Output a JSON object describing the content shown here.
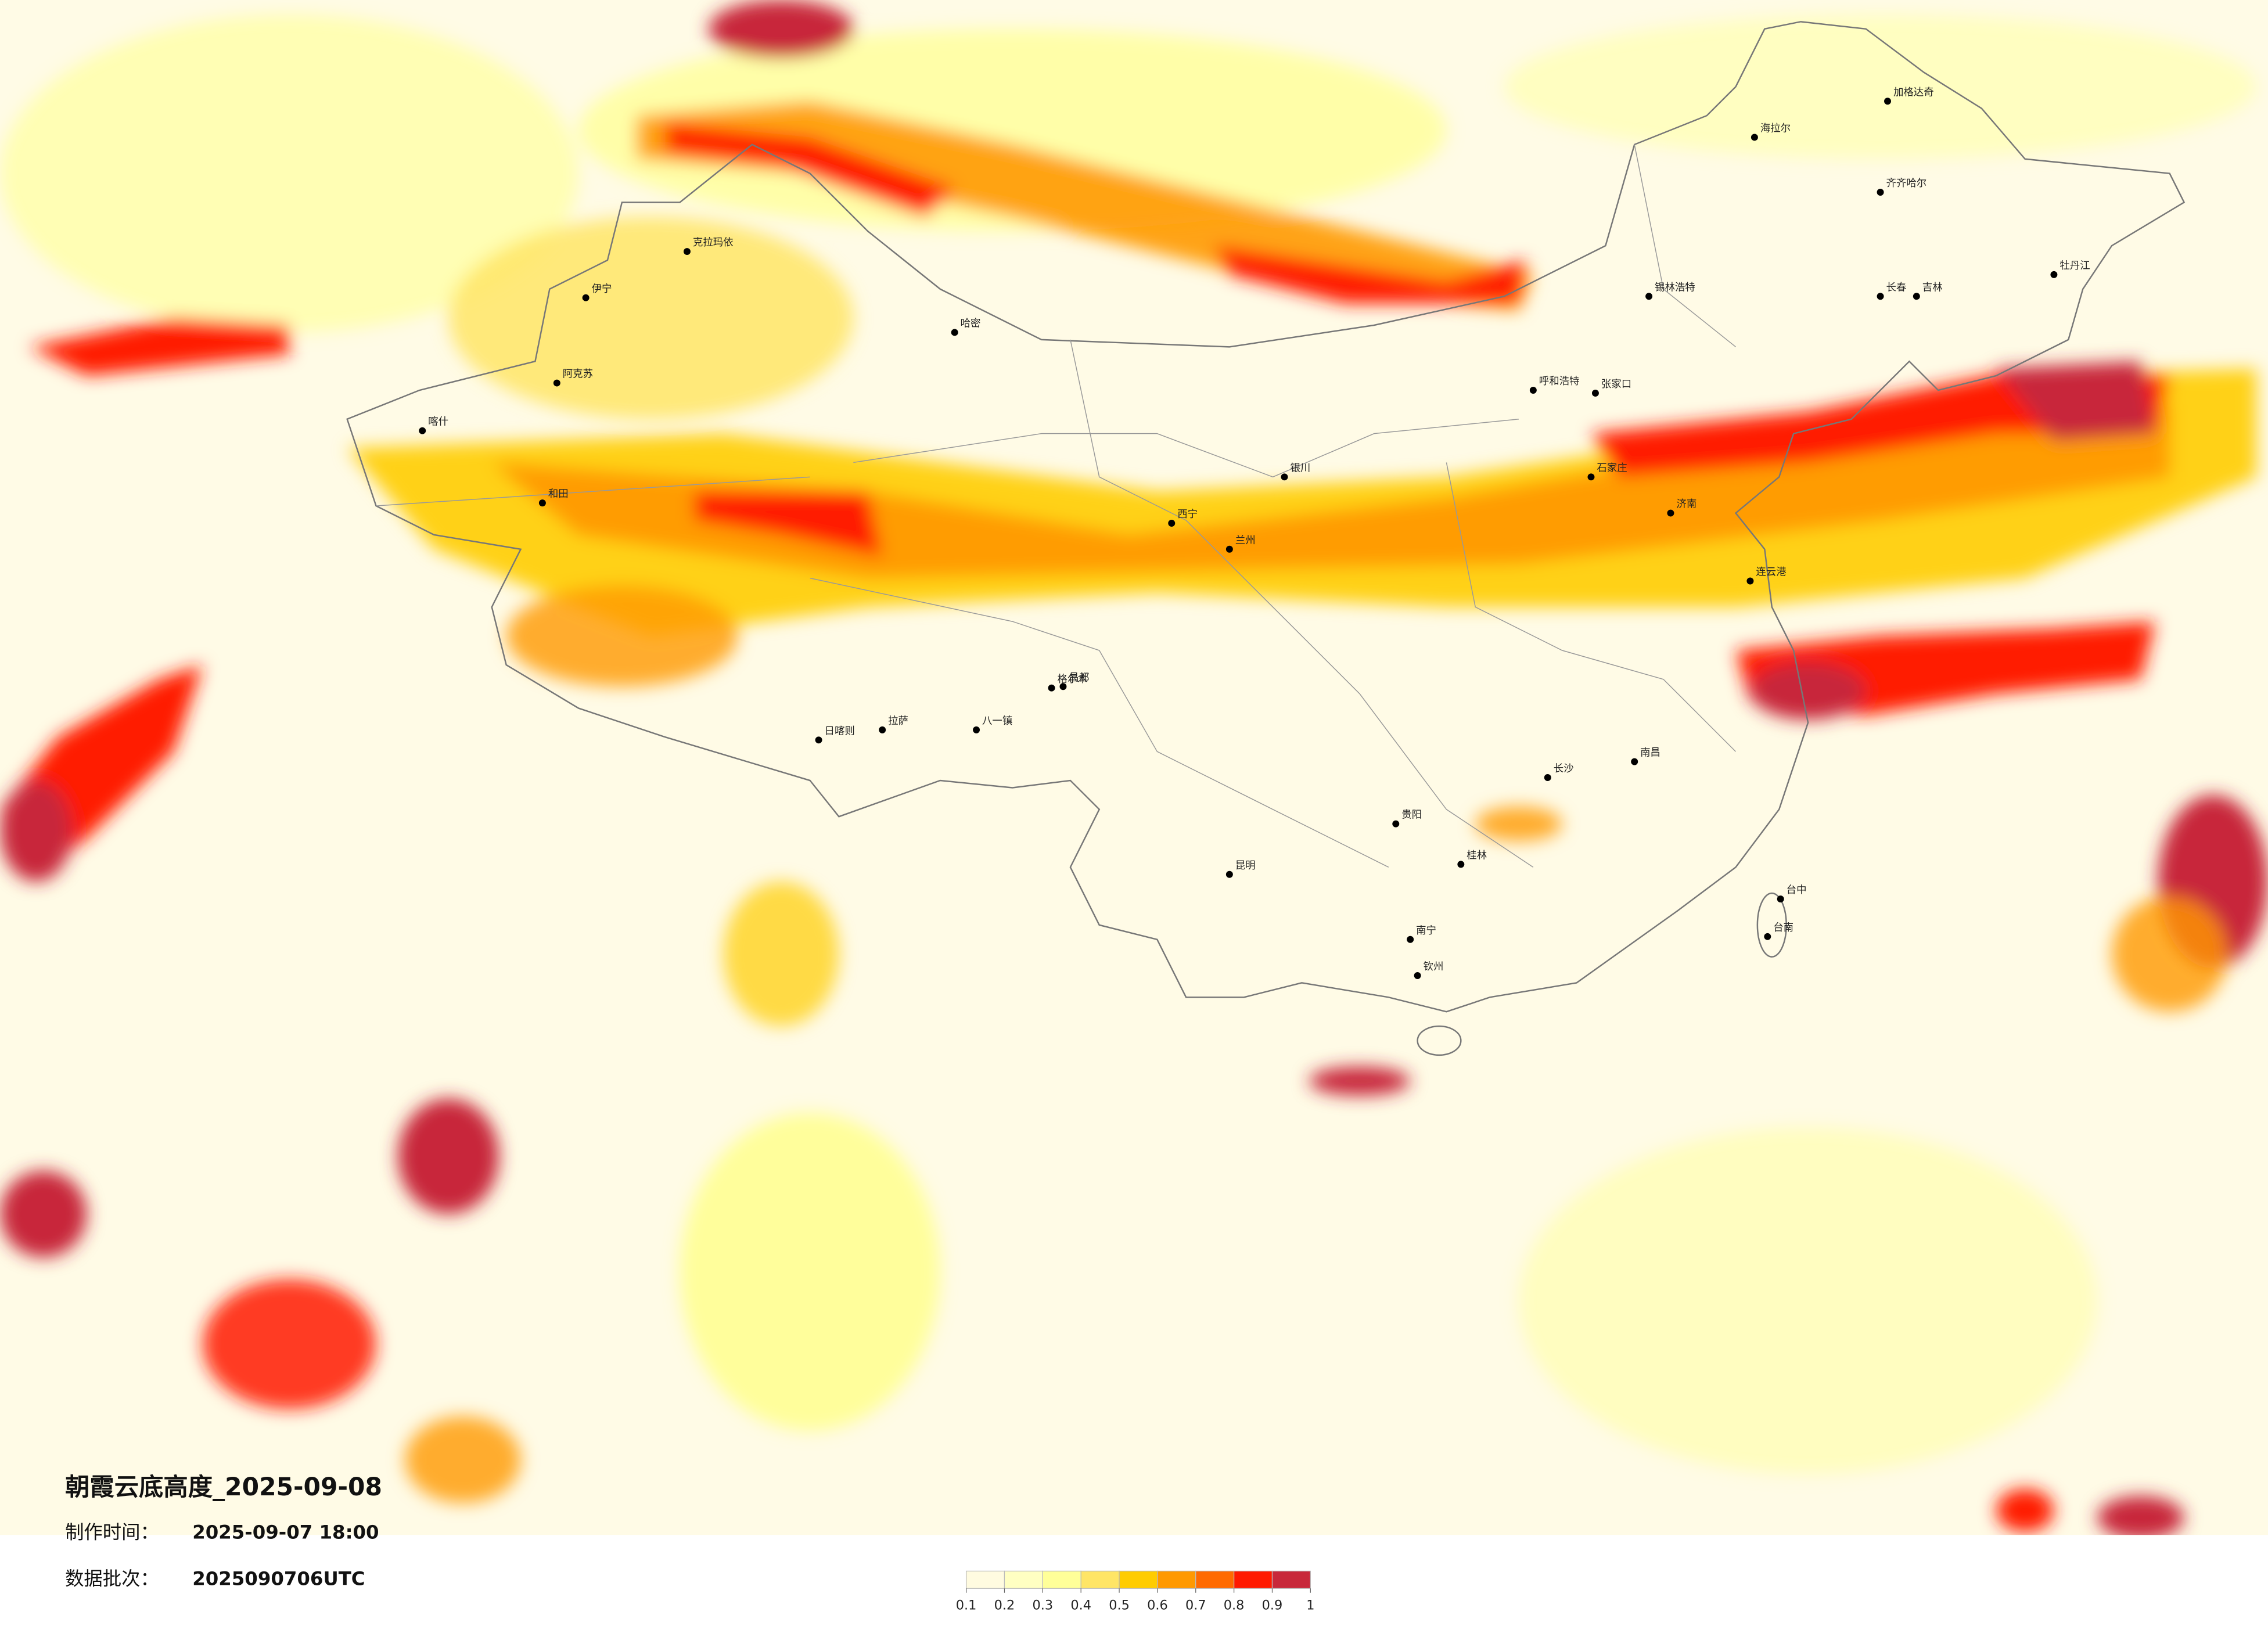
{
  "map": {
    "title": "朝霞云底高度_2025-09-08",
    "production_time": {
      "label": "制作时间：",
      "value": "2025-09-07 18:00"
    },
    "data_batch": {
      "label": "数据批次：",
      "value": "2025090706UTC"
    },
    "colorbar": {
      "ticks": [
        0.1,
        0.2,
        0.3,
        0.4,
        0.5,
        0.6,
        0.7,
        0.8,
        0.9,
        1
      ],
      "colors": [
        "#fffbe0",
        "#ffffc2",
        "#ffff99",
        "#ffe566",
        "#ffcc00",
        "#ff9900",
        "#ff6a00",
        "#ff1a00",
        "#c8283a"
      ]
    },
    "cities": [
      "海拉尔",
      "加格达奇",
      "齐齐哈尔",
      "克拉玛依",
      "伊宁",
      "阿克苏",
      "喀什",
      "和田",
      "哈密",
      "拉萨",
      "日喀则",
      "八一镇",
      "昌都",
      "西宁",
      "兰州",
      "银川",
      "呼和浩特",
      "锡林浩特",
      "长春",
      "吉林",
      "石家庄",
      "济南",
      "长沙",
      "南昌",
      "台中",
      "台南",
      "南宁",
      "昆明",
      "贵阳",
      "桂林",
      "钦州",
      "格尔木",
      "张家口",
      "连云港",
      "牡丹江"
    ]
  }
}
